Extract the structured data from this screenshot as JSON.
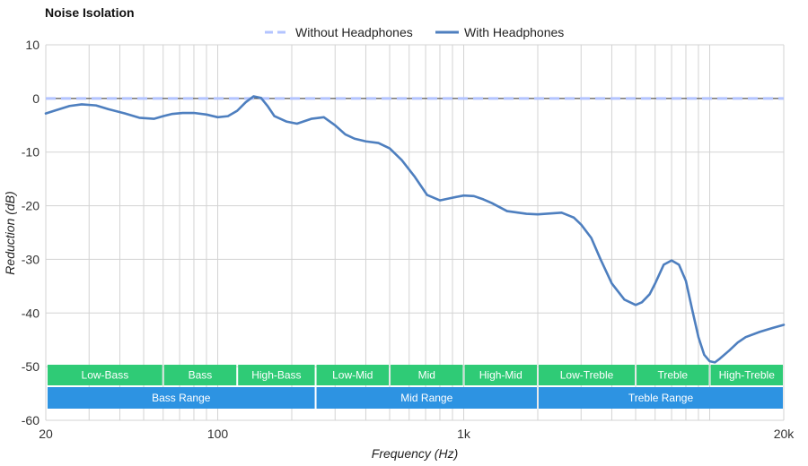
{
  "chart_data": {
    "type": "line",
    "title": "Noise Isolation",
    "xlabel": "Frequency (Hz)",
    "ylabel": "Reduction (dB)",
    "x_scale": "log",
    "xlim": [
      20,
      20000
    ],
    "ylim": [
      -60,
      10
    ],
    "x_ticks": [
      {
        "value": 20,
        "label": "20"
      },
      {
        "value": 100,
        "label": "100"
      },
      {
        "value": 1000,
        "label": "1k"
      },
      {
        "value": 20000,
        "label": "20k"
      }
    ],
    "y_ticks": [
      {
        "value": 10,
        "label": "10"
      },
      {
        "value": 0,
        "label": "0"
      },
      {
        "value": -10,
        "label": "-10"
      },
      {
        "value": -20,
        "label": "-20"
      },
      {
        "value": -30,
        "label": "-30"
      },
      {
        "value": -40,
        "label": "-40"
      },
      {
        "value": -50,
        "label": "-50"
      },
      {
        "value": -60,
        "label": "-60"
      }
    ],
    "grid": true,
    "legend_position": "top-center",
    "series": [
      {
        "name": "Without Headphones",
        "color": "#b3c4ff",
        "style": "dashed",
        "x": [
          20,
          20000
        ],
        "y": [
          0,
          0
        ]
      },
      {
        "name": "With Headphones",
        "color": "#4e7fbf",
        "style": "solid",
        "x": [
          20,
          22,
          25,
          28,
          32,
          36,
          42,
          48,
          55,
          60,
          65,
          72,
          80,
          90,
          100,
          110,
          120,
          130,
          140,
          150,
          160,
          170,
          190,
          210,
          240,
          270,
          300,
          330,
          360,
          400,
          450,
          500,
          560,
          630,
          710,
          800,
          900,
          1000,
          1100,
          1200,
          1300,
          1500,
          1800,
          2000,
          2500,
          2800,
          3000,
          3300,
          3600,
          4000,
          4500,
          5000,
          5300,
          5700,
          6000,
          6500,
          7000,
          7500,
          8000,
          8500,
          9000,
          9500,
          10000,
          10500,
          11000,
          12000,
          13000,
          14000,
          16000,
          18000,
          20000
        ],
        "y": [
          -2.8,
          -2.2,
          -1.4,
          -1.1,
          -1.3,
          -2.0,
          -2.8,
          -3.6,
          -3.8,
          -3.3,
          -2.9,
          -2.7,
          -2.7,
          -3.0,
          -3.5,
          -3.3,
          -2.3,
          -0.7,
          0.4,
          0.1,
          -1.5,
          -3.3,
          -4.3,
          -4.7,
          -3.8,
          -3.5,
          -5.0,
          -6.7,
          -7.5,
          -8.0,
          -8.3,
          -9.3,
          -11.5,
          -14.5,
          -18.0,
          -19.0,
          -18.5,
          -18.1,
          -18.2,
          -18.8,
          -19.5,
          -21.0,
          -21.5,
          -21.6,
          -21.3,
          -22.2,
          -23.5,
          -26.0,
          -30.0,
          -34.5,
          -37.5,
          -38.5,
          -38.0,
          -36.5,
          -34.5,
          -31.0,
          -30.2,
          -31.0,
          -34.0,
          -39.5,
          -44.5,
          -47.8,
          -49.0,
          -49.2,
          -48.5,
          -47.0,
          -45.5,
          -44.5,
          -43.5,
          -42.8,
          -42.2
        ]
      }
    ],
    "bands": [
      {
        "label": "Low-Bass",
        "from": 20,
        "to": 60,
        "row": 1,
        "color": "#2fcb76"
      },
      {
        "label": "Bass",
        "from": 60,
        "to": 120,
        "row": 1,
        "color": "#2fcb76"
      },
      {
        "label": "High-Bass",
        "from": 120,
        "to": 250,
        "row": 1,
        "color": "#2fcb76"
      },
      {
        "label": "Low-Mid",
        "from": 250,
        "to": 500,
        "row": 1,
        "color": "#2fcb76"
      },
      {
        "label": "Mid",
        "from": 500,
        "to": 1000,
        "row": 1,
        "color": "#2fcb76"
      },
      {
        "label": "High-Mid",
        "from": 1000,
        "to": 2000,
        "row": 1,
        "color": "#2fcb76"
      },
      {
        "label": "Low-Treble",
        "from": 2000,
        "to": 5000,
        "row": 1,
        "color": "#2fcb76"
      },
      {
        "label": "Treble",
        "from": 5000,
        "to": 10000,
        "row": 1,
        "color": "#2fcb76"
      },
      {
        "label": "High-Treble",
        "from": 10000,
        "to": 20000,
        "row": 1,
        "color": "#2fcb76"
      },
      {
        "label": "Bass Range",
        "from": 20,
        "to": 250,
        "row": 2,
        "color": "#2d93e2"
      },
      {
        "label": "Mid Range",
        "from": 250,
        "to": 2000,
        "row": 2,
        "color": "#2d93e2"
      },
      {
        "label": "Treble Range",
        "from": 2000,
        "to": 20000,
        "row": 2,
        "color": "#2d93e2"
      }
    ]
  }
}
